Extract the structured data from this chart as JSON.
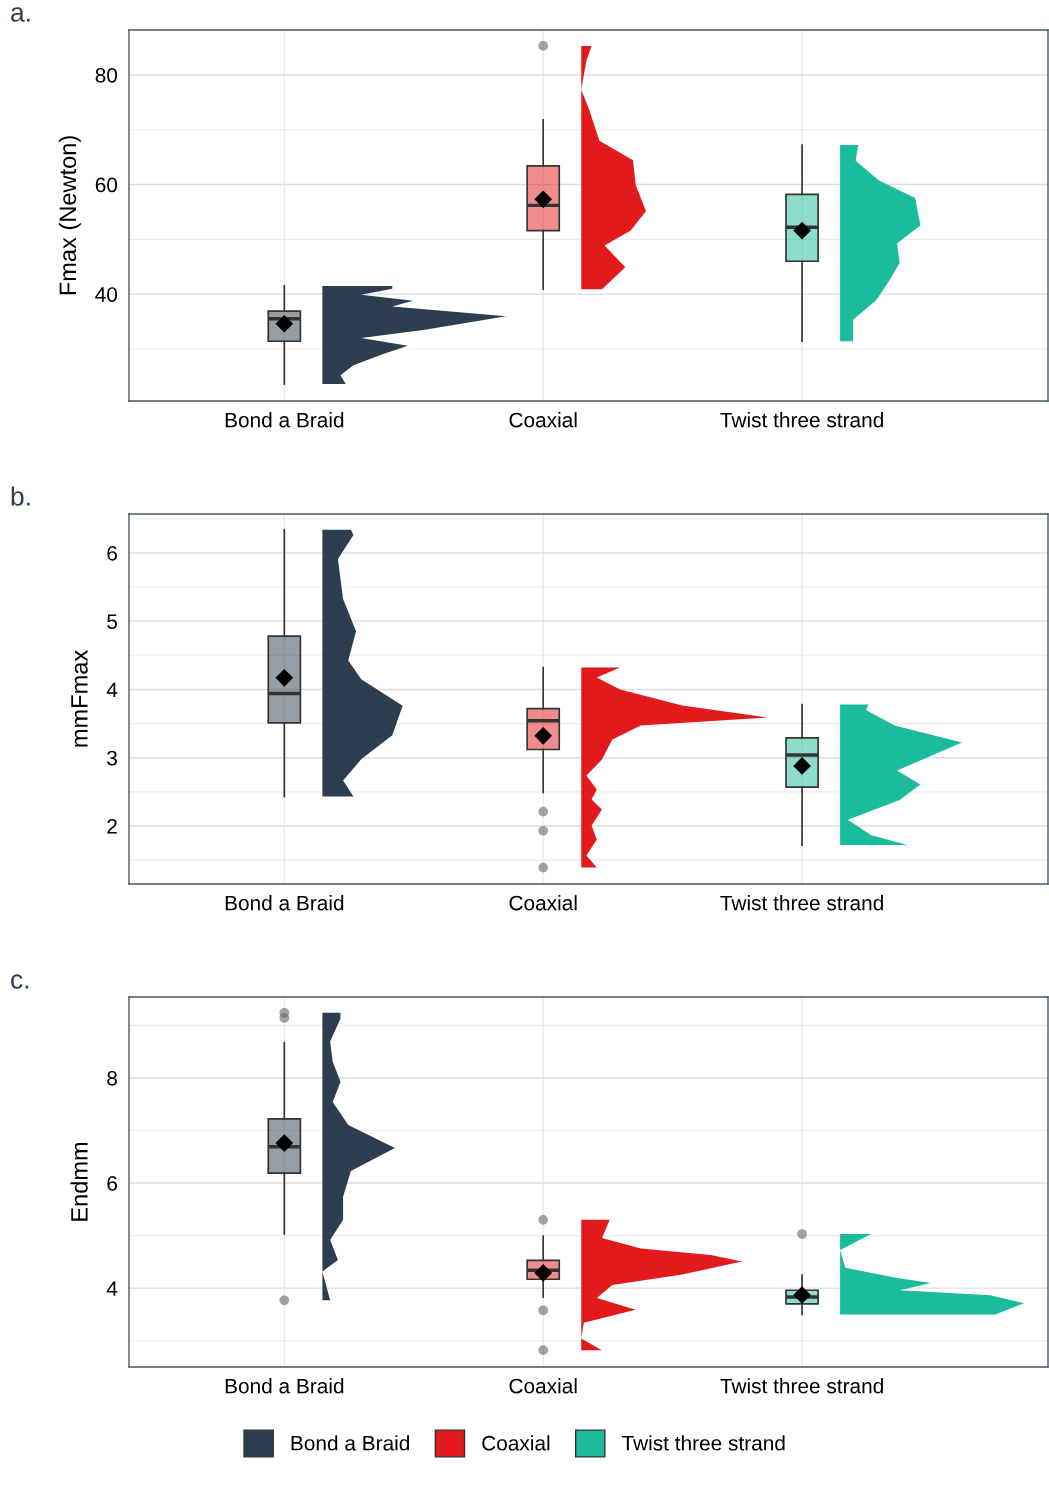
{
  "chart_data": [
    {
      "type": "box",
      "title": "a.",
      "ylabel": "Fmax (Newton)",
      "categories": [
        "Bond a Braid",
        "Coaxial",
        "Twist three strand"
      ],
      "series": [
        {
          "color": "#2c3e50",
          "boxes": [
            {
              "low": 23.6,
              "q1": 31.4,
              "median": 35.5,
              "q3": 36.9,
              "high": 41.5,
              "mean": 34.6
            },
            null,
            null
          ]
        },
        {
          "color": "#e31a1c",
          "boxes": [
            null,
            {
              "low": 40.9,
              "q1": 51.6,
              "median": 56.2,
              "q3": 63.4,
              "high": 71.8,
              "mean": 57.3,
              "outliers": [
                85.3
              ]
            },
            null
          ]
        },
        {
          "color": "#1abc9c",
          "boxes": [
            null,
            null,
            {
              "low": 31.4,
              "q1": 46.0,
              "median": 52.2,
              "q3": 58.2,
              "high": 67.2,
              "mean": 51.6
            }
          ]
        }
      ],
      "ylim": [
        20.5,
        88.2
      ],
      "yticks": [
        {
          "value": 30,
          "label": null
        },
        40,
        {
          "value": 50,
          "label": null
        },
        60,
        {
          "value": 70,
          "label": null
        },
        80
      ],
      "grid": true
    },
    {
      "type": "box",
      "title": "b.",
      "ylabel": "mmFmax",
      "categories": [
        "Bond a Braid",
        "Coaxial",
        "Twist three strand"
      ],
      "series": [
        {
          "color": "#2c3e50",
          "boxes": [
            {
              "low": 2.43,
              "q1": 3.51,
              "median": 3.94,
              "q3": 4.78,
              "high": 6.34,
              "mean": 4.17
            },
            null,
            null
          ]
        },
        {
          "color": "#e31a1c",
          "boxes": [
            null,
            {
              "low": 2.49,
              "q1": 3.12,
              "median": 3.54,
              "q3": 3.72,
              "high": 4.32,
              "mean": 3.32,
              "outliers": [
                2.21,
                1.93,
                1.39
              ]
            },
            null
          ]
        },
        {
          "color": "#1abc9c",
          "boxes": [
            null,
            null,
            {
              "low": 1.72,
              "q1": 2.57,
              "median": 3.04,
              "q3": 3.29,
              "high": 3.78,
              "mean": 2.88
            }
          ]
        }
      ],
      "ylim": [
        1.15,
        6.57
      ],
      "yticks": [
        {
          "value": 1.5,
          "label": null
        },
        2,
        {
          "value": 2.5,
          "label": null
        },
        3,
        {
          "value": 3.5,
          "label": null
        },
        4,
        {
          "value": 4.5,
          "label": null
        },
        5,
        {
          "value": 5.5,
          "label": null
        },
        6,
        {
          "value": 6.5,
          "label": null
        }
      ],
      "grid": true
    },
    {
      "type": "box",
      "title": "c.",
      "ylabel": "Endmm",
      "categories": [
        "Bond a Braid",
        "Coaxial",
        "Twist three strand"
      ],
      "series": [
        {
          "name": "Bond a Braid",
          "color": "#2c3e50",
          "boxes": [
            {
              "low": 5.03,
              "q1": 6.19,
              "median": 6.69,
              "q3": 7.22,
              "high": 8.67,
              "mean": 6.76,
              "outliers": [
                9.24,
                9.14,
                3.77
              ]
            },
            null,
            null
          ]
        },
        {
          "name": "Coaxial",
          "color": "#e31a1c",
          "boxes": [
            null,
            {
              "low": 3.83,
              "q1": 4.17,
              "median": 4.34,
              "q3": 4.53,
              "high": 4.99,
              "mean": 4.29,
              "outliers": [
                5.3,
                3.58,
                2.82
              ]
            },
            null
          ]
        },
        {
          "name": "Twist three strand",
          "color": "#1abc9c",
          "boxes": [
            null,
            null,
            {
              "low": 3.5,
              "q1": 3.7,
              "median": 3.83,
              "q3": 3.96,
              "high": 4.25,
              "mean": 3.87,
              "outliers": [
                5.03
              ]
            }
          ]
        }
      ],
      "ylim": [
        2.5,
        9.54
      ],
      "yticks": [
        {
          "value": 3,
          "label": null
        },
        4,
        {
          "value": 5,
          "label": null
        },
        6,
        {
          "value": 7,
          "label": null
        },
        8,
        {
          "value": 9,
          "label": null
        }
      ],
      "grid": true,
      "legend": "bottom"
    }
  ]
}
